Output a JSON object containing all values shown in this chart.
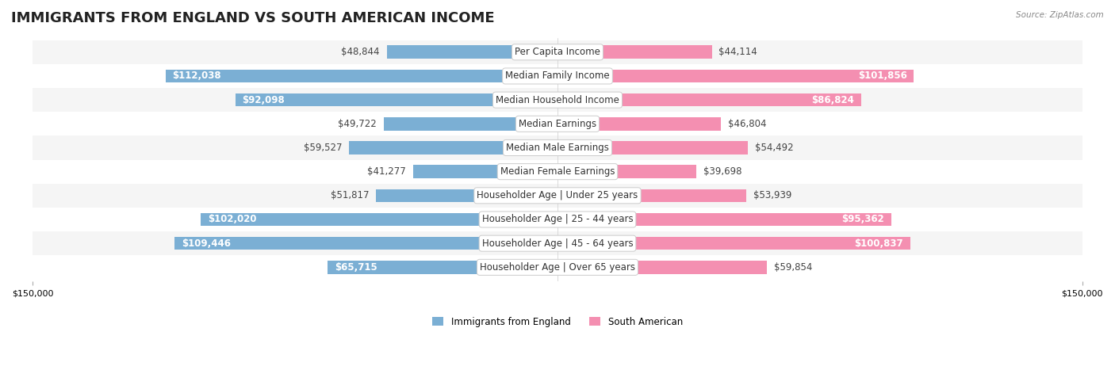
{
  "title": "IMMIGRANTS FROM ENGLAND VS SOUTH AMERICAN INCOME",
  "source": "Source: ZipAtlas.com",
  "categories": [
    "Per Capita Income",
    "Median Family Income",
    "Median Household Income",
    "Median Earnings",
    "Median Male Earnings",
    "Median Female Earnings",
    "Householder Age | Under 25 years",
    "Householder Age | 25 - 44 years",
    "Householder Age | 45 - 64 years",
    "Householder Age | Over 65 years"
  ],
  "england_values": [
    48844,
    112038,
    92098,
    49722,
    59527,
    41277,
    51817,
    102020,
    109446,
    65715
  ],
  "south_american_values": [
    44114,
    101856,
    86824,
    46804,
    54492,
    39698,
    53939,
    95362,
    100837,
    59854
  ],
  "england_labels": [
    "$48,844",
    "$112,038",
    "$92,098",
    "$49,722",
    "$59,527",
    "$41,277",
    "$51,817",
    "$102,020",
    "$109,446",
    "$65,715"
  ],
  "south_american_labels": [
    "$44,114",
    "$101,856",
    "$86,824",
    "$46,804",
    "$54,492",
    "$39,698",
    "$53,939",
    "$95,362",
    "$100,837",
    "$59,854"
  ],
  "england_color": "#7bafd4",
  "south_american_color": "#f48fb1",
  "england_color_dark": "#5a8fbf",
  "south_american_color_dark": "#e06090",
  "max_value": 150000,
  "background_color": "#f5f5f5",
  "row_bg_color": "#ffffff",
  "row_alt_bg_color": "#f0f0f0",
  "legend_england": "Immigrants from England",
  "legend_south_american": "South American",
  "title_fontsize": 13,
  "label_fontsize": 8.5,
  "axis_fontsize": 8,
  "bar_height": 0.55
}
